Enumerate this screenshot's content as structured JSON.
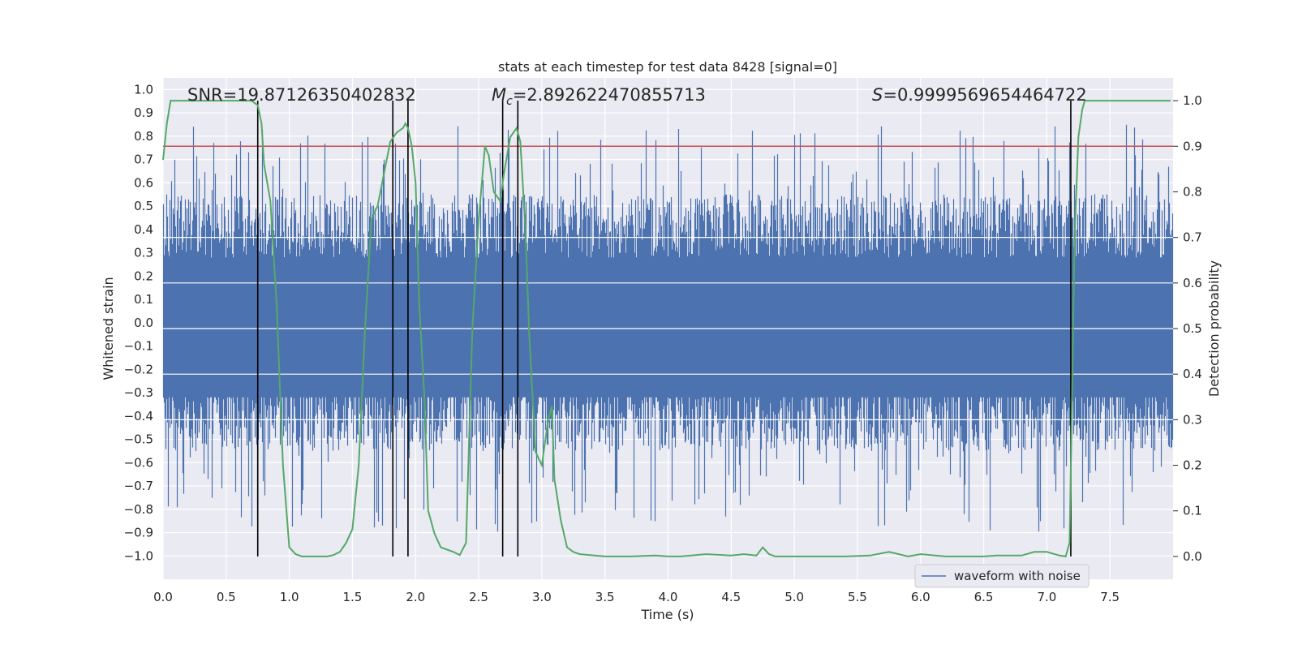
{
  "chart_data": {
    "type": "line",
    "title": "stats at each timestep for test data 8428 [signal=0]",
    "xlabel": "Time (s)",
    "ylabel": "Whitened strain",
    "y2label": "Detection probability",
    "xlim": [
      0.0,
      8.0
    ],
    "ylim": [
      -1.1,
      1.05
    ],
    "y2lim": [
      -0.05,
      1.05
    ],
    "x_ticks": [
      "0.0",
      "0.5",
      "1.0",
      "1.5",
      "2.0",
      "2.5",
      "3.0",
      "3.5",
      "4.0",
      "4.5",
      "5.0",
      "5.5",
      "6.0",
      "6.5",
      "7.0",
      "7.5"
    ],
    "y_ticks": [
      "1.0",
      "0.9",
      "0.8",
      "0.7",
      "0.6",
      "0.5",
      "0.4",
      "0.3",
      "0.2",
      "0.1",
      "0.0",
      "−0.1",
      "−0.2",
      "−0.3",
      "−0.4",
      "−0.5",
      "−0.6",
      "−0.7",
      "−0.8",
      "−0.9",
      "−1.0"
    ],
    "y2_ticks": [
      "1.0",
      "0.9",
      "0.8",
      "0.7",
      "0.6",
      "0.5",
      "0.4",
      "0.3",
      "0.2",
      "0.1",
      "0.0"
    ],
    "grid": true,
    "legend": {
      "position": "bottom-right",
      "entries": [
        "waveform with noise"
      ]
    },
    "annotations": {
      "snr": "SNR=19.87126350402832",
      "mc_symbol": "M",
      "mc_sub": "c",
      "mc_value": "=2.892622470855713",
      "s_symbol": "S",
      "s_value": "=0.9999569654464722"
    },
    "waveform": {
      "name": "waveform with noise",
      "color": "#4c72b0",
      "envelope_approx": {
        "typical_peak": 0.55,
        "max": 0.92,
        "min": -0.95
      }
    },
    "threshold": {
      "value": 0.9,
      "axis": "y2",
      "color": "#c44e52"
    },
    "vertical_lines_x": [
      0.75,
      1.82,
      1.94,
      2.69,
      2.81,
      7.19
    ],
    "detection_probability": {
      "color": "#55a868",
      "x": [
        0.0,
        0.03,
        0.06,
        0.1,
        0.2,
        0.3,
        0.4,
        0.5,
        0.6,
        0.7,
        0.75,
        0.78,
        0.8,
        0.85,
        0.9,
        0.95,
        1.0,
        1.05,
        1.1,
        1.2,
        1.3,
        1.35,
        1.4,
        1.45,
        1.5,
        1.55,
        1.6,
        1.65,
        1.7,
        1.75,
        1.8,
        1.85,
        1.9,
        1.92,
        1.94,
        1.97,
        2.0,
        2.03,
        2.07,
        2.1,
        2.15,
        2.2,
        2.25,
        2.3,
        2.35,
        2.4,
        2.45,
        2.5,
        2.55,
        2.58,
        2.62,
        2.67,
        2.7,
        2.75,
        2.8,
        2.83,
        2.87,
        2.9,
        2.95,
        3.0,
        3.05,
        3.08,
        3.1,
        3.15,
        3.2,
        3.25,
        3.3,
        3.5,
        3.7,
        3.9,
        4.0,
        4.1,
        4.3,
        4.5,
        4.6,
        4.7,
        4.75,
        4.8,
        4.85,
        5.0,
        5.2,
        5.4,
        5.6,
        5.75,
        5.9,
        6.0,
        6.2,
        6.5,
        6.6,
        6.8,
        6.9,
        7.0,
        7.1,
        7.15,
        7.18,
        7.2,
        7.22,
        7.25,
        7.28,
        7.3,
        7.35,
        7.4,
        7.5,
        7.6,
        7.7,
        7.8,
        7.9,
        7.98
      ],
      "y": [
        0.87,
        0.95,
        1.0,
        1.0,
        1.0,
        1.0,
        1.0,
        1.0,
        1.0,
        1.0,
        0.99,
        0.95,
        0.86,
        0.78,
        0.55,
        0.2,
        0.02,
        0.005,
        0.0,
        0.0,
        0.0,
        0.003,
        0.01,
        0.03,
        0.06,
        0.2,
        0.5,
        0.74,
        0.77,
        0.84,
        0.91,
        0.93,
        0.94,
        0.95,
        0.94,
        0.9,
        0.82,
        0.55,
        0.35,
        0.1,
        0.05,
        0.02,
        0.015,
        0.01,
        0.003,
        0.03,
        0.5,
        0.74,
        0.9,
        0.88,
        0.8,
        0.78,
        0.84,
        0.92,
        0.94,
        0.91,
        0.72,
        0.49,
        0.23,
        0.2,
        0.3,
        0.33,
        0.17,
        0.08,
        0.02,
        0.01,
        0.005,
        0.0,
        0.0,
        0.002,
        0.0,
        0.0,
        0.005,
        0.002,
        0.005,
        0.002,
        0.02,
        0.005,
        0.0,
        0.0,
        0.0,
        0.0,
        0.002,
        0.01,
        0.0,
        0.005,
        0.0,
        0.0,
        0.002,
        0.002,
        0.01,
        0.01,
        0.002,
        0.0,
        0.03,
        0.35,
        0.7,
        0.92,
        0.98,
        1.0,
        1.0,
        1.0,
        1.0,
        1.0,
        1.0,
        1.0,
        1.0,
        1.0
      ]
    }
  }
}
